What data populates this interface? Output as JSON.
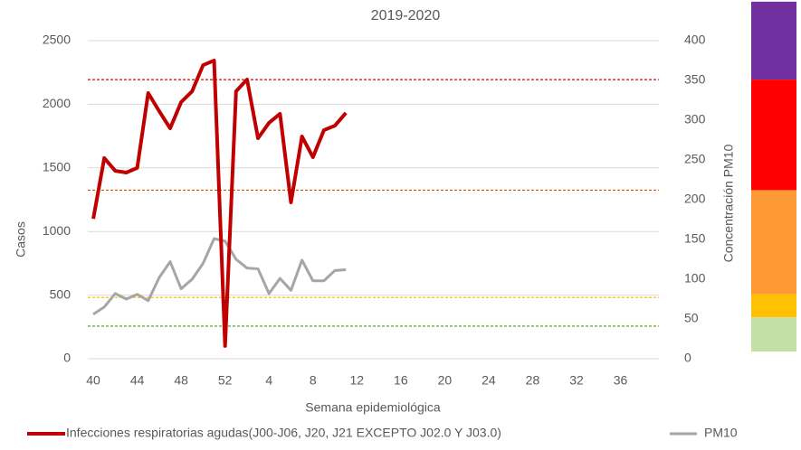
{
  "chart_data": {
    "type": "line",
    "title": "2019-2020",
    "x_label": "Semana epidemiológica",
    "y_label": "Casos",
    "y2_label": "Concentración PM10",
    "categories": [
      "40",
      null,
      null,
      null,
      "44",
      null,
      null,
      null,
      "48",
      null,
      null,
      null,
      "52",
      null,
      null,
      null,
      "4",
      null,
      null,
      null,
      "8",
      null,
      null,
      null,
      "12",
      null,
      null,
      null,
      "16",
      null,
      null,
      null,
      "20",
      null,
      null,
      null,
      "24",
      null,
      null,
      null,
      "28",
      null,
      null,
      null,
      "32",
      null,
      null,
      null,
      "36",
      null,
      null,
      null
    ],
    "series": [
      {
        "name": "Infecciones respiratorias agudas(J00-J06, J20, J21 EXCEPTO J02.0 Y J03.0)",
        "color": "#c00000",
        "axis": "y",
        "values": [
          1100,
          1577,
          1477,
          1463,
          1500,
          2088,
          1946,
          1811,
          2017,
          2102,
          2308,
          2344,
          100,
          2102,
          2195,
          1733,
          1854,
          1925,
          1229,
          1747,
          1584,
          1797,
          1832,
          1932,
          null,
          null,
          null,
          null,
          null,
          null,
          null,
          null,
          null,
          null,
          null,
          null,
          null,
          null,
          null,
          null,
          null,
          null,
          null,
          null,
          null,
          null,
          null,
          null,
          null,
          null,
          null,
          null
        ]
      },
      {
        "name": "PM10",
        "color": "#a6a6a6",
        "axis": "y2",
        "values": [
          56,
          65,
          82,
          75,
          81,
          73,
          102,
          122,
          88,
          100,
          120,
          151,
          148,
          125,
          114,
          113,
          82,
          101,
          86,
          124,
          98,
          98,
          111,
          112,
          null,
          null,
          null,
          null,
          null,
          null,
          null,
          null,
          null,
          null,
          null,
          null,
          null,
          null,
          null,
          null,
          null,
          null,
          null,
          null,
          null,
          null,
          null,
          null,
          null,
          null,
          null,
          null
        ]
      }
    ],
    "ylim": [
      0,
      2500
    ],
    "yticks": [
      0,
      500,
      1000,
      1500,
      2000,
      2500
    ],
    "y2lim": [
      0,
      400
    ],
    "y2ticks": [
      0,
      50,
      100,
      150,
      200,
      250,
      300,
      350,
      400
    ],
    "grid": true,
    "reference_lines": [
      {
        "value": 351,
        "color": "#e00000",
        "axis": "y2"
      },
      {
        "value": 212,
        "color": "#c55a11",
        "axis": "y2"
      },
      {
        "value": 77,
        "color": "#ffc000",
        "axis": "y2"
      },
      {
        "value": 41,
        "color": "#38a800",
        "axis": "y2"
      }
    ],
    "color_bands": [
      {
        "from": 351,
        "to": 449,
        "color": "#7030a0"
      },
      {
        "from": 212,
        "to": 351,
        "color": "#ff0000"
      },
      {
        "from": 81,
        "to": 212,
        "color": "#ff9933"
      },
      {
        "from": 52,
        "to": 81,
        "color": "#ffc000"
      },
      {
        "from": 9,
        "to": 52,
        "color": "#c5e0a5"
      }
    ],
    "legend": "bottom"
  }
}
